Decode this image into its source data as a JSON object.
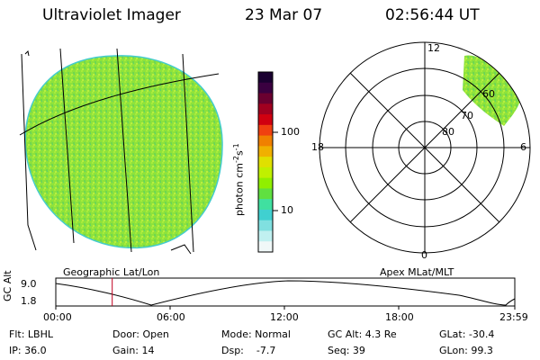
{
  "header": {
    "instrument": "Ultraviolet Imager",
    "date": "23 Mar 07",
    "time": "02:56:44 UT"
  },
  "colorbar": {
    "unit": "photon cm",
    "exp1": "-2",
    "mid": "s",
    "exp2": "-1",
    "ticks": [
      "100",
      "10"
    ],
    "colors": [
      "#1a0030",
      "#3a0040",
      "#6a0030",
      "#a00020",
      "#d00010",
      "#f04010",
      "#f08000",
      "#f0b000",
      "#e0e000",
      "#c0f000",
      "#90ef00",
      "#60e040",
      "#40e0a0",
      "#40d0d0",
      "#80e0e0",
      "#c0f0f0",
      "#f0f8f8"
    ]
  },
  "polar_plot": {
    "mlt_labels": {
      "top": "12",
      "left": "18",
      "right": "6",
      "bottom": "0"
    },
    "lat_labels": [
      "60",
      "70",
      "80"
    ]
  },
  "labels": {
    "left_plot": "Geographic Lat/Lon",
    "right_plot": "Apex MLat/MLT",
    "gc_axis": "GC Alt",
    "gc_top": "9.0",
    "gc_bottom": "1.8"
  },
  "timeline": {
    "ticks": [
      "00:00",
      "06:00",
      "12:00",
      "18:00",
      "23:59"
    ],
    "current_marker_hours": 2.95
  },
  "status": {
    "flt": "Flt: LBHL",
    "door": "Door: Open",
    "mode": "Mode: Normal",
    "gc_alt": "GC Alt: 4.3 Re",
    "glat": "GLat: -30.4",
    "ip": "IP: 36.0",
    "gain": "Gain: 14",
    "dsp": "Dsp:    -7.7",
    "seq": "Seq: 39",
    "glon": "GLon: 99.3"
  }
}
